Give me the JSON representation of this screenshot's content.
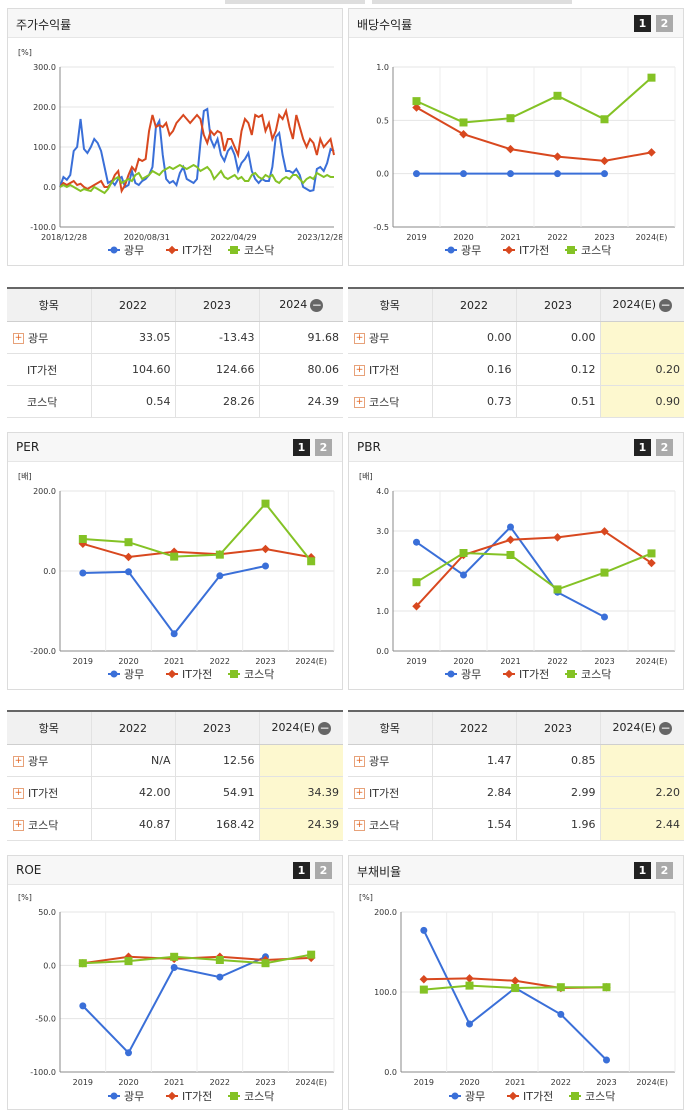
{
  "colors": {
    "s1": "#3a6fd8",
    "s2": "#d8481f",
    "s3": "#84c225"
  },
  "legend": [
    "광무",
    "IT가전",
    "코스닥"
  ],
  "panels": {
    "stock": {
      "title": "주가수익률"
    },
    "div": {
      "title": "배당수익률",
      "btn1": "1",
      "btn2": "2"
    },
    "per": {
      "title": "PER",
      "btn1": "1",
      "btn2": "2"
    },
    "pbr": {
      "title": "PBR",
      "btn1": "1",
      "btn2": "2"
    },
    "roe": {
      "title": "ROE",
      "btn1": "1",
      "btn2": "2"
    },
    "debt": {
      "title": "부채비율",
      "btn1": "1",
      "btn2": "2"
    }
  },
  "tables": {
    "stock": {
      "headers": [
        "항목",
        "2022",
        "2023",
        "2024"
      ],
      "rows": [
        {
          "name": "광무",
          "v": [
            "33.05",
            "-13.43",
            "91.68"
          ]
        },
        {
          "name": "IT가전",
          "v": [
            "104.60",
            "124.66",
            "80.06"
          ]
        },
        {
          "name": "코스닥",
          "v": [
            "0.54",
            "28.26",
            "24.39"
          ]
        }
      ]
    },
    "div": {
      "headers": [
        "항목",
        "2022",
        "2023",
        "2024(E)"
      ],
      "rows": [
        {
          "name": "광무",
          "v": [
            "0.00",
            "0.00",
            ""
          ]
        },
        {
          "name": "IT가전",
          "v": [
            "0.16",
            "0.12",
            "0.20"
          ]
        },
        {
          "name": "코스닥",
          "v": [
            "0.73",
            "0.51",
            "0.90"
          ]
        }
      ]
    },
    "per": {
      "headers": [
        "항목",
        "2022",
        "2023",
        "2024(E)"
      ],
      "rows": [
        {
          "name": "광무",
          "v": [
            "N/A",
            "12.56",
            ""
          ]
        },
        {
          "name": "IT가전",
          "v": [
            "42.00",
            "54.91",
            "34.39"
          ]
        },
        {
          "name": "코스닥",
          "v": [
            "40.87",
            "168.42",
            "24.39"
          ]
        }
      ]
    },
    "pbr": {
      "headers": [
        "항목",
        "2022",
        "2023",
        "2024(E)"
      ],
      "rows": [
        {
          "name": "광무",
          "v": [
            "1.47",
            "0.85",
            ""
          ]
        },
        {
          "name": "IT가전",
          "v": [
            "2.84",
            "2.99",
            "2.20"
          ]
        },
        {
          "name": "코스닥",
          "v": [
            "1.54",
            "1.96",
            "2.44"
          ]
        }
      ]
    }
  },
  "chart_data": [
    {
      "id": "stock",
      "type": "line",
      "title": "주가수익률",
      "unit": "[%]",
      "ylim": [
        -100,
        300
      ],
      "yticks": [
        -100,
        0,
        100,
        200,
        300
      ],
      "ytick_labels": [
        "-100.0",
        "0.0",
        "100.0",
        "200.0",
        "300.0"
      ],
      "xticks": [
        "2018/12/28",
        "2020/08/31",
        "2022/04/29",
        "2023/12/28"
      ],
      "series": [
        {
          "name": "광무",
          "values": [
            0,
            25,
            18,
            30,
            90,
            100,
            170,
            95,
            85,
            100,
            120,
            110,
            90,
            50,
            10,
            15,
            5,
            20,
            25,
            0,
            5,
            40,
            10,
            5,
            15,
            20,
            30,
            50,
            150,
            165,
            80,
            20,
            10,
            15,
            5,
            35,
            50,
            20,
            15,
            10,
            20,
            110,
            190,
            195,
            120,
            100,
            120,
            80,
            65,
            90,
            100,
            80,
            40,
            60,
            70,
            85,
            40,
            20,
            10,
            20,
            15,
            15,
            50,
            125,
            135,
            80,
            40,
            40,
            35,
            45,
            30,
            0,
            -5,
            -10,
            -8,
            45,
            50,
            40,
            60,
            95,
            90
          ]
        },
        {
          "name": "IT가전",
          "values": [
            0,
            10,
            5,
            10,
            15,
            5,
            8,
            0,
            -5,
            0,
            5,
            10,
            15,
            0,
            0,
            10,
            30,
            40,
            -10,
            5,
            30,
            50,
            40,
            70,
            65,
            70,
            140,
            180,
            150,
            155,
            150,
            160,
            130,
            140,
            160,
            170,
            180,
            170,
            160,
            170,
            180,
            170,
            130,
            110,
            140,
            130,
            140,
            135,
            90,
            120,
            120,
            100,
            80,
            140,
            170,
            160,
            130,
            180,
            175,
            180,
            140,
            160,
            120,
            140,
            180,
            170,
            190,
            150,
            120,
            180,
            150,
            120,
            100,
            120,
            110,
            80,
            120,
            100,
            110,
            120,
            80
          ]
        },
        {
          "name": "코스닥",
          "values": [
            0,
            5,
            0,
            5,
            0,
            -5,
            -10,
            -5,
            -8,
            -10,
            0,
            -5,
            -10,
            -15,
            -5,
            10,
            20,
            25,
            10,
            15,
            20,
            15,
            30,
            35,
            20,
            25,
            30,
            40,
            35,
            30,
            40,
            45,
            50,
            45,
            50,
            55,
            50,
            45,
            50,
            55,
            50,
            40,
            45,
            50,
            40,
            20,
            30,
            40,
            25,
            20,
            25,
            30,
            20,
            25,
            15,
            15,
            30,
            35,
            25,
            20,
            30,
            25,
            30,
            15,
            10,
            20,
            25,
            20,
            30,
            30,
            20,
            10,
            20,
            25,
            20,
            35,
            30,
            25,
            30,
            25,
            25
          ]
        }
      ]
    },
    {
      "id": "div",
      "type": "line",
      "title": "배당수익률",
      "unit": "",
      "ylim": [
        -0.5,
        1.0
      ],
      "yticks": [
        -0.5,
        0,
        0.5,
        1.0
      ],
      "ytick_labels": [
        "-0.5",
        "0.0",
        "0.5",
        "1.0"
      ],
      "categories": [
        "2019",
        "2020",
        "2021",
        "2022",
        "2023",
        "2024(E)"
      ],
      "series": [
        {
          "name": "광무",
          "values": [
            0.0,
            0.0,
            0.0,
            0.0,
            0.0,
            null
          ]
        },
        {
          "name": "IT가전",
          "values": [
            0.62,
            0.37,
            0.23,
            0.16,
            0.12,
            0.2
          ]
        },
        {
          "name": "코스닥",
          "values": [
            0.68,
            0.48,
            0.52,
            0.73,
            0.51,
            0.9
          ]
        }
      ]
    },
    {
      "id": "per",
      "type": "line",
      "title": "PER",
      "unit": "[배]",
      "ylim": [
        -200,
        200
      ],
      "yticks": [
        -200,
        0,
        200
      ],
      "ytick_labels": [
        "-200.0",
        "0.0",
        "200.0"
      ],
      "categories": [
        "2019",
        "2020",
        "2021",
        "2022",
        "2023",
        "2024(E)"
      ],
      "series": [
        {
          "name": "광무",
          "values": [
            -5,
            -2,
            -157,
            -12,
            12.56,
            null
          ]
        },
        {
          "name": "IT가전",
          "values": [
            68,
            35,
            48,
            42,
            54.91,
            34.39
          ]
        },
        {
          "name": "코스닥",
          "values": [
            80,
            72,
            36,
            40.87,
            168.42,
            24.39
          ]
        }
      ]
    },
    {
      "id": "pbr",
      "type": "line",
      "title": "PBR",
      "unit": "[배]",
      "ylim": [
        0,
        4.0
      ],
      "yticks": [
        0,
        1,
        2,
        3,
        4
      ],
      "ytick_labels": [
        "0.0",
        "1.0",
        "2.0",
        "3.0",
        "4.0"
      ],
      "categories": [
        "2019",
        "2020",
        "2021",
        "2022",
        "2023",
        "2024(E)"
      ],
      "series": [
        {
          "name": "광무",
          "values": [
            2.72,
            1.9,
            3.1,
            1.47,
            0.85,
            null
          ]
        },
        {
          "name": "IT가전",
          "values": [
            1.12,
            2.4,
            2.78,
            2.84,
            2.99,
            2.2
          ]
        },
        {
          "name": "코스닥",
          "values": [
            1.72,
            2.45,
            2.4,
            1.54,
            1.96,
            2.44
          ]
        }
      ]
    },
    {
      "id": "roe",
      "type": "line",
      "title": "ROE",
      "unit": "[%]",
      "ylim": [
        -100,
        50
      ],
      "yticks": [
        -100,
        -50,
        0,
        50
      ],
      "ytick_labels": [
        "-100.0",
        "-50.0",
        "0.0",
        "50.0"
      ],
      "categories": [
        "2019",
        "2020",
        "2021",
        "2022",
        "2023",
        "2024(E)"
      ],
      "series": [
        {
          "name": "광무",
          "values": [
            -38,
            -82,
            -2,
            -11,
            8,
            null
          ]
        },
        {
          "name": "IT가전",
          "values": [
            2,
            8,
            6,
            8,
            5,
            7
          ]
        },
        {
          "name": "코스닥",
          "values": [
            2,
            4,
            8,
            5,
            2,
            10
          ]
        }
      ]
    },
    {
      "id": "debt",
      "type": "line",
      "title": "부채비율",
      "unit": "[%]",
      "ylim": [
        0,
        200
      ],
      "yticks": [
        0,
        100,
        200
      ],
      "ytick_labels": [
        "0.0",
        "100.0",
        "200.0"
      ],
      "categories": [
        "2019",
        "2020",
        "2021",
        "2022",
        "2023",
        "2024(E)"
      ],
      "series": [
        {
          "name": "광무",
          "values": [
            177,
            60,
            105,
            72,
            15,
            null
          ]
        },
        {
          "name": "IT가전",
          "values": [
            116,
            117,
            114,
            105,
            106,
            null
          ]
        },
        {
          "name": "코스닥",
          "values": [
            103,
            108,
            105,
            106,
            106,
            null
          ]
        }
      ]
    }
  ]
}
